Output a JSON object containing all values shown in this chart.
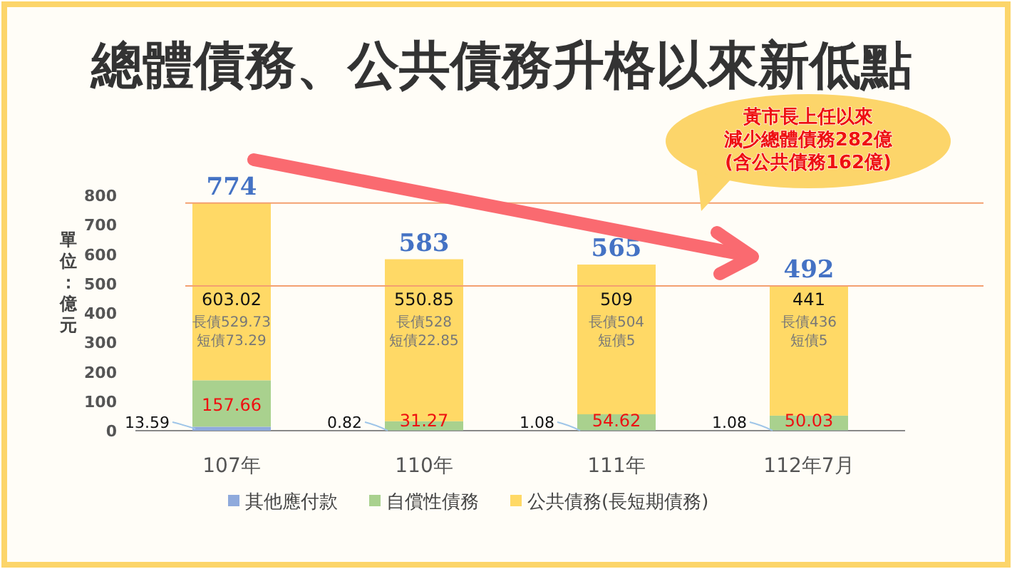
{
  "chart_data": {
    "type": "bar",
    "title": "總體債務、公共債務升格以來新低點",
    "ylabel": "單位：億元",
    "categories": [
      "107年",
      "110年",
      "111年",
      "112年7月"
    ],
    "series": [
      {
        "name": "其他應付款",
        "color": "#8faadc",
        "values": [
          13.59,
          0.82,
          1.08,
          1.08
        ]
      },
      {
        "name": "自償性債務",
        "color": "#a9d18e",
        "values": [
          157.66,
          31.27,
          54.62,
          50.03
        ]
      },
      {
        "name": "公共債務(長短期債務)",
        "color": "#ffd966",
        "values": [
          603.02,
          550.85,
          509,
          441
        ]
      }
    ],
    "stacked": true,
    "data_labels": true,
    "totals": [
      "774",
      "583",
      "565",
      "492"
    ],
    "ylim": [
      0,
      800
    ],
    "yticks": [
      0,
      100,
      200,
      300,
      400,
      500,
      600,
      700,
      800
    ],
    "grid": false,
    "legend": "bottom",
    "ref_lines": [
      {
        "axis": "y",
        "value": 774,
        "color": "#f4a070"
      },
      {
        "axis": "y",
        "value": 492,
        "color": "#f4a070"
      }
    ],
    "annotations": [
      "長債529.73",
      "短債73.29",
      "長債528",
      "短債22.85",
      "長債504",
      "短債5",
      "長債436",
      "短債5",
      "黃市長上任以來",
      "減少總體債務282億",
      "(含公共債務162億)"
    ]
  }
}
